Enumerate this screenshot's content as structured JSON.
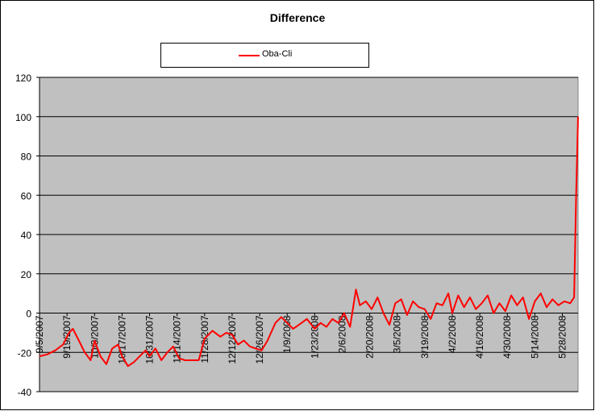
{
  "chart_data": {
    "type": "line",
    "title": "Difference",
    "xlabel": "",
    "ylabel": "",
    "ylim": [
      -40,
      120
    ],
    "yticks": [
      -40,
      -20,
      0,
      20,
      40,
      60,
      80,
      100,
      120
    ],
    "grid": true,
    "plot_background": "#c0c0c0",
    "legend_position": "top",
    "x_start": "9/5/2007",
    "x_end": "6/5/2008",
    "xticks": [
      "9/5/2007",
      "9/19/2007",
      "10/3/2007",
      "10/17/2007",
      "10/31/2007",
      "11/14/2007",
      "11/28/2007",
      "12/12/2007",
      "12/26/2007",
      "1/9/2008",
      "1/23/2008",
      "2/6/2008",
      "2/20/2008",
      "3/5/2008",
      "3/19/2008",
      "4/2/2008",
      "4/16/2008",
      "4/30/2008",
      "5/14/2008",
      "5/28/2008"
    ],
    "series": [
      {
        "name": "Oba-Cli",
        "color": "#ff0000",
        "x": [
          "9/5/2007",
          "9/9/2007",
          "9/13/2007",
          "9/17/2007",
          "9/20/2007",
          "9/22/2007",
          "9/25/2007",
          "9/28/2007",
          "10/1/2007",
          "10/3/2007",
          "10/6/2007",
          "10/9/2007",
          "10/12/2007",
          "10/15/2007",
          "10/17/2007",
          "10/20/2007",
          "10/23/2007",
          "10/26/2007",
          "10/29/2007",
          "10/31/2007",
          "11/3/2007",
          "11/6/2007",
          "11/9/2007",
          "11/12/2007",
          "11/15/2007",
          "11/18/2007",
          "11/21/2007",
          "11/25/2007",
          "11/28/2007",
          "12/2/2007",
          "12/6/2007",
          "12/9/2007",
          "12/12/2007",
          "12/15/2007",
          "12/18/2007",
          "12/21/2007",
          "12/24/2007",
          "12/27/2007",
          "12/30/2007",
          "1/3/2008",
          "1/6/2008",
          "1/9/2008",
          "1/12/2008",
          "1/15/2008",
          "1/19/2008",
          "1/23/2008",
          "1/26/2008",
          "1/29/2008",
          "2/1/2008",
          "2/4/2008",
          "2/7/2008",
          "2/10/2008",
          "2/13/2008",
          "2/15/2008",
          "2/18/2008",
          "2/21/2008",
          "2/24/2008",
          "2/27/2008",
          "3/1/2008",
          "3/4/2008",
          "3/7/2008",
          "3/10/2008",
          "3/13/2008",
          "3/16/2008",
          "3/19/2008",
          "3/22/2008",
          "3/25/2008",
          "3/28/2008",
          "3/31/2008",
          "4/2/2008",
          "4/5/2008",
          "4/8/2008",
          "4/11/2008",
          "4/14/2008",
          "4/17/2008",
          "4/20/2008",
          "4/23/2008",
          "4/26/2008",
          "4/29/2008",
          "5/2/2008",
          "5/5/2008",
          "5/8/2008",
          "5/11/2008",
          "5/14/2008",
          "5/17/2008",
          "5/20/2008",
          "5/23/2008",
          "5/26/2008",
          "5/29/2008",
          "6/1/2008",
          "6/3/2008",
          "6/4/2008",
          "6/5/2008"
        ],
        "values": [
          -22,
          -21,
          -19,
          -16,
          -10,
          -8,
          -14,
          -20,
          -24,
          -14,
          -22,
          -26,
          -18,
          -16,
          -22,
          -27,
          -25,
          -22,
          -19,
          -22,
          -18,
          -24,
          -20,
          -17,
          -23,
          -24,
          -24,
          -24,
          -13,
          -9,
          -12,
          -10,
          -11,
          -16,
          -14,
          -17,
          -18,
          -19,
          -14,
          -5,
          -2,
          -5,
          -8,
          -6,
          -3,
          -8,
          -5,
          -7,
          -3,
          -5,
          0,
          -7,
          12,
          4,
          6,
          2,
          8,
          0,
          -6,
          5,
          7,
          -1,
          6,
          3,
          2,
          -3,
          5,
          4,
          10,
          0,
          9,
          3,
          8,
          2,
          5,
          9,
          0,
          5,
          1,
          9,
          4,
          8,
          -3,
          6,
          10,
          3,
          7,
          4,
          6,
          5,
          8,
          60,
          100
        ]
      }
    ]
  }
}
